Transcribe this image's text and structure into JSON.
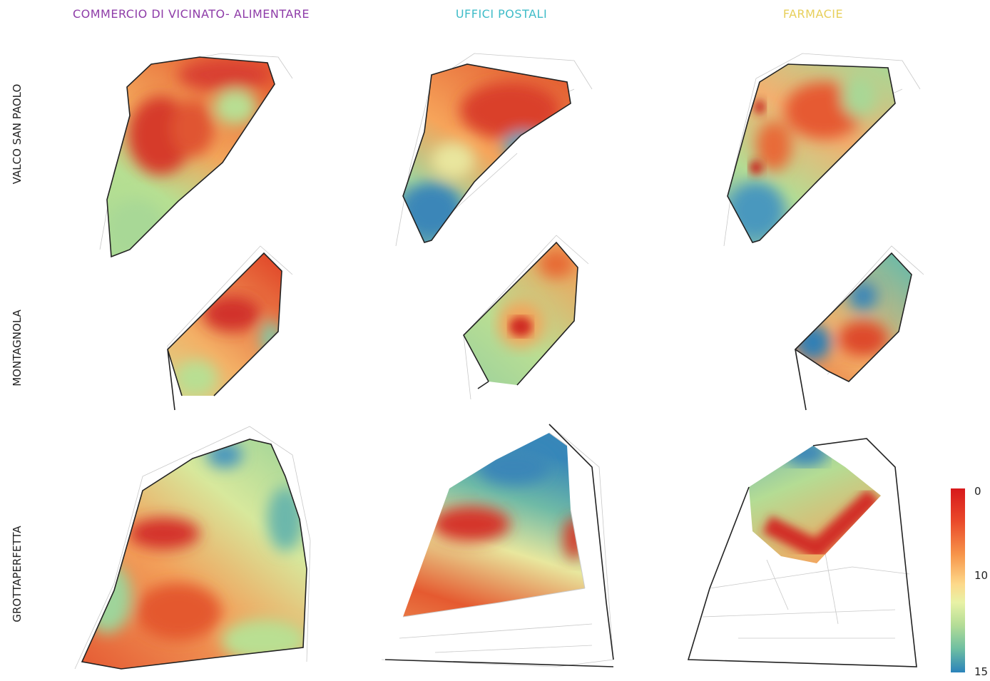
{
  "columns": [
    {
      "label": "COMMERCIO DI VICINATO- ALIMENTARE",
      "color": "#8e3ca8"
    },
    {
      "label": "UFFICI POSTALI",
      "color": "#3fbcc8"
    },
    {
      "label": "FARMACIE",
      "color": "#e7cf5a"
    }
  ],
  "rows": [
    {
      "label": "VALCO SAN PAOLO"
    },
    {
      "label": "MONTAGNOLA"
    },
    {
      "label": "GROTTAPERFETTA"
    }
  ],
  "legend": {
    "ticks": [
      "0",
      "10",
      "15"
    ],
    "colors": {
      "low": "#d7191c",
      "mid": "#fdd98a",
      "high": "#2b83ba"
    }
  }
}
